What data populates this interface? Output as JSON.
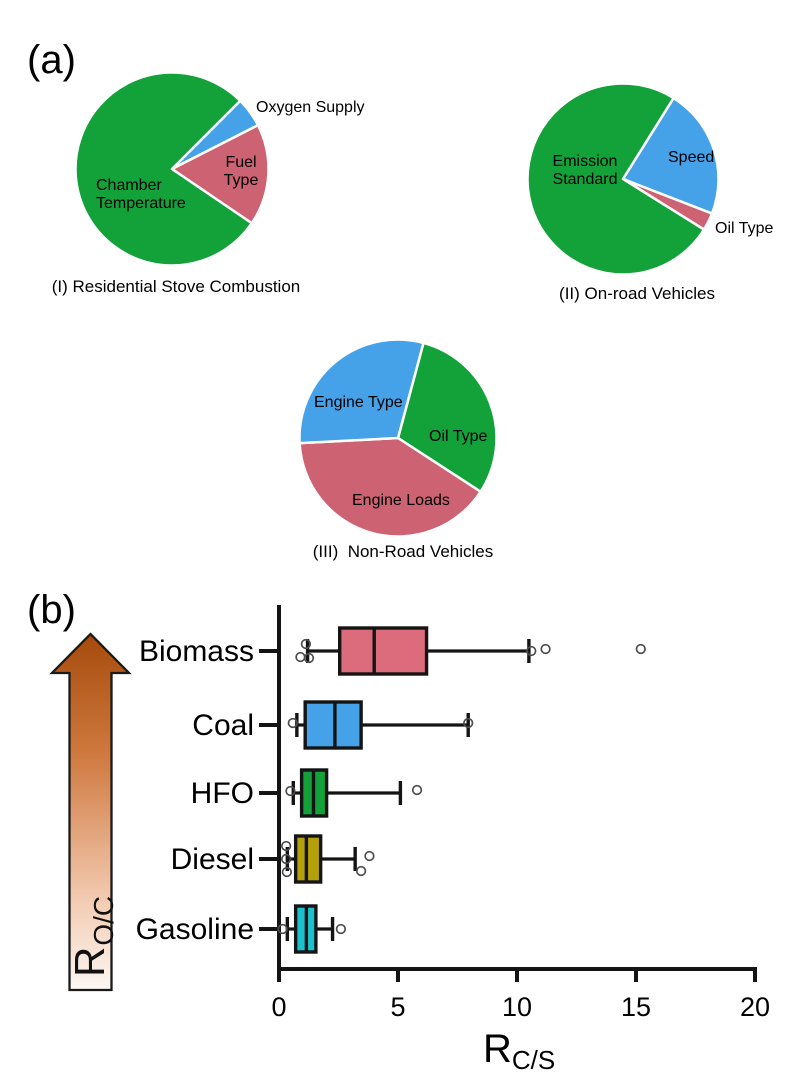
{
  "panels": {
    "a_label": "(a)",
    "b_label": "(b)"
  },
  "arrow": {
    "label_main": "R",
    "label_sub": "O/C"
  },
  "colors": {
    "green": "#13a13a",
    "blue": "#45a1e8",
    "red_pie": "#cd6272",
    "red_box": "#dc6b7c",
    "gold": "#b3a00a",
    "cyan": "#19c2cc",
    "axis": "#141414",
    "outlier": "#4d4d4d",
    "arrow_top": "#a64a0c",
    "arrow_bottom": "#fcf7f3"
  },
  "chart_data": [
    {
      "type": "pie",
      "title": "(I) Residential Stove Combustion",
      "start_angle": 45,
      "slices": [
        {
          "label": "Oxygen Supply",
          "value": 5,
          "color": "#45a1e8",
          "label_placement": "outside"
        },
        {
          "label": "Fuel Type",
          "value": 17,
          "color": "#cd6272",
          "label_placement": "inside"
        },
        {
          "label": "Chamber Temperature",
          "value": 78,
          "color": "#13a13a",
          "label_placement": "inside"
        }
      ]
    },
    {
      "type": "pie",
      "title": "(II) On-road Vehicles",
      "start_angle": 58,
      "slices": [
        {
          "label": "Speed",
          "value": 22,
          "color": "#45a1e8",
          "label_placement": "inside"
        },
        {
          "label": "Oil Type",
          "value": 3,
          "color": "#cd6272",
          "label_placement": "outside"
        },
        {
          "label": "Emission Standard",
          "value": 75,
          "color": "#13a13a",
          "label_placement": "inside"
        }
      ]
    },
    {
      "type": "pie",
      "title": "(III)  Non-Road Vehicles",
      "start_angle": 75,
      "slices": [
        {
          "label": "Oil Type",
          "value": 30,
          "color": "#13a13a",
          "label_placement": "inside"
        },
        {
          "label": "Engine Loads",
          "value": 40,
          "color": "#cd6272",
          "label_placement": "inside"
        },
        {
          "label": "Engine Type",
          "value": 30,
          "color": "#45a1e8",
          "label_placement": "inside"
        }
      ]
    },
    {
      "type": "box",
      "xlabel_main": "R",
      "xlabel_sub": "C/S",
      "xlim": [
        0,
        20
      ],
      "xticks": [
        0,
        5,
        10,
        15,
        20
      ],
      "categories": [
        {
          "label": "Biomass",
          "color": "#dc6b7c",
          "whisker_low": 1.2,
          "q1": 2.55,
          "median": 4.0,
          "q3": 6.2,
          "whisker_high": 10.5,
          "outliers": [
            {
              "v": 1.13,
              "dy": -7
            },
            {
              "v": 0.9,
              "dy": 6
            },
            {
              "v": 1.26,
              "dy": 7
            },
            {
              "v": 10.6,
              "dy": 0
            },
            {
              "v": 11.2,
              "dy": -2
            },
            {
              "v": 15.2,
              "dy": -2
            }
          ]
        },
        {
          "label": "Coal",
          "color": "#45a1e8",
          "whisker_low": 0.75,
          "q1": 1.1,
          "median": 2.35,
          "q3": 3.45,
          "whisker_high": 7.95,
          "outliers": [
            {
              "v": 0.58,
              "dy": -2
            },
            {
              "v": 7.95,
              "dy": -2
            }
          ]
        },
        {
          "label": "HFO",
          "color": "#13a13a",
          "whisker_low": 0.6,
          "q1": 0.95,
          "median": 1.45,
          "q3": 2.0,
          "whisker_high": 5.1,
          "outliers": [
            {
              "v": 0.48,
              "dy": -2
            },
            {
              "v": 5.8,
              "dy": -3
            }
          ]
        },
        {
          "label": "Diesel",
          "color": "#b3a00a",
          "whisker_low": 0.35,
          "q1": 0.7,
          "median": 1.15,
          "q3": 1.75,
          "whisker_high": 3.2,
          "outliers": [
            {
              "v": 0.3,
              "dy": -13
            },
            {
              "v": 0.3,
              "dy": 0
            },
            {
              "v": 0.33,
              "dy": 13
            },
            {
              "v": 3.45,
              "dy": 12
            },
            {
              "v": 3.8,
              "dy": -3
            }
          ]
        },
        {
          "label": "Gasoline",
          "color": "#19c2cc",
          "whisker_low": 0.35,
          "q1": 0.7,
          "median": 1.15,
          "q3": 1.55,
          "whisker_high": 2.25,
          "outliers": [
            {
              "v": 0.15,
              "dy": 0
            },
            {
              "v": 2.6,
              "dy": 0
            }
          ]
        }
      ]
    }
  ]
}
